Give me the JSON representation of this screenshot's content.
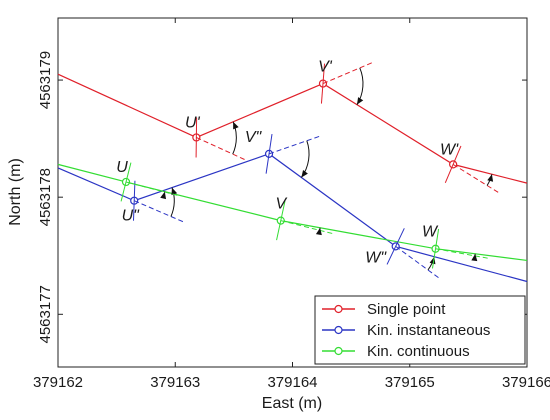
{
  "chart_data": {
    "type": "line",
    "xlabel": "East (m)",
    "ylabel": "North (m)",
    "xlim": [
      379162,
      379166
    ],
    "ylim": [
      4563176.55,
      4563179.53
    ],
    "x_ticks": [
      "379162",
      "379163",
      "379164",
      "379165",
      "379166"
    ],
    "y_ticks": [
      "4563177",
      "4563178",
      "4563179"
    ],
    "legend_position": "bottom-right",
    "series": [
      {
        "name": "Single point",
        "color": "#e0202a",
        "points": [
          {
            "x": 379162.0,
            "y": 4563179.05
          },
          {
            "x": 379163.18,
            "y": 4563178.51
          },
          {
            "x": 379164.26,
            "y": 4563178.97
          },
          {
            "x": 379165.37,
            "y": 4563178.28
          },
          {
            "x": 379166.0,
            "y": 4563178.12
          }
        ]
      },
      {
        "name": "Kin. instantaneous",
        "color": "#2b35c4",
        "points": [
          {
            "x": 379162.0,
            "y": 4563178.25
          },
          {
            "x": 379162.65,
            "y": 4563177.97
          },
          {
            "x": 379163.8,
            "y": 4563178.37
          },
          {
            "x": 379164.88,
            "y": 4563177.58
          },
          {
            "x": 379166.0,
            "y": 4563177.28
          }
        ]
      },
      {
        "name": "Kin. continuous",
        "color": "#33dd33",
        "points": [
          {
            "x": 379162.0,
            "y": 4563178.28
          },
          {
            "x": 379162.58,
            "y": 4563178.13
          },
          {
            "x": 379163.9,
            "y": 4563177.8
          },
          {
            "x": 379165.22,
            "y": 4563177.56
          },
          {
            "x": 379166.0,
            "y": 4563177.46
          }
        ]
      }
    ],
    "annotations": [
      {
        "label": "U'",
        "x": 379163.18,
        "y": 4563178.51
      },
      {
        "label": "V'",
        "x": 379164.26,
        "y": 4563178.97
      },
      {
        "label": "W'",
        "x": 379165.37,
        "y": 4563178.28
      },
      {
        "label": "U\"",
        "x": 379162.65,
        "y": 4563177.97
      },
      {
        "label": "V\"",
        "x": 379163.8,
        "y": 4563178.37
      },
      {
        "label": "W\"",
        "x": 379164.88,
        "y": 4563177.58
      },
      {
        "label": "U",
        "x": 379162.58,
        "y": 4563178.13
      },
      {
        "label": "V",
        "x": 379163.9,
        "y": 4563177.8
      },
      {
        "label": "W",
        "x": 379165.22,
        "y": 4563177.56
      }
    ]
  }
}
